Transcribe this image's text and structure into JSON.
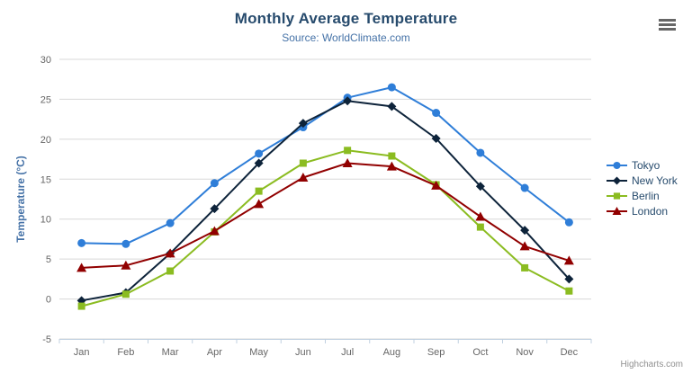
{
  "chart_data": {
    "type": "line",
    "title": "Monthly Average Temperature",
    "subtitle": "Source: WorldClimate.com",
    "xlabel": "",
    "ylabel": "Temperature (°C)",
    "categories": [
      "Jan",
      "Feb",
      "Mar",
      "Apr",
      "May",
      "Jun",
      "Jul",
      "Aug",
      "Sep",
      "Oct",
      "Nov",
      "Dec"
    ],
    "series": [
      {
        "name": "Tokyo",
        "color": "#2f7ed8",
        "marker": "circle",
        "values": [
          7.0,
          6.9,
          9.5,
          14.5,
          18.2,
          21.5,
          25.2,
          26.5,
          23.3,
          18.3,
          13.9,
          9.6
        ]
      },
      {
        "name": "New York",
        "color": "#0d233a",
        "marker": "diamond",
        "values": [
          -0.2,
          0.8,
          5.7,
          11.3,
          17.0,
          22.0,
          24.8,
          24.1,
          20.1,
          14.1,
          8.6,
          2.5
        ]
      },
      {
        "name": "Berlin",
        "color": "#8bbc21",
        "marker": "square",
        "values": [
          -0.9,
          0.6,
          3.5,
          8.4,
          13.5,
          17.0,
          18.6,
          17.9,
          14.3,
          9.0,
          3.9,
          1.0
        ]
      },
      {
        "name": "London",
        "color": "#910000",
        "marker": "triangle",
        "values": [
          3.9,
          4.2,
          5.7,
          8.5,
          11.9,
          15.2,
          17.0,
          16.6,
          14.2,
          10.3,
          6.6,
          4.8
        ]
      }
    ],
    "ylim": [
      -5,
      30
    ],
    "ytick_step": 5,
    "grid": true,
    "legend_position": "right"
  },
  "credits": {
    "text": "Highcharts.com"
  },
  "colors": {
    "title": "#274b6d",
    "subtitle": "#4572a7",
    "axis_label": "#666666",
    "axis_title": "#4572a7",
    "grid": "#d8d8d8",
    "axis_line": "#c0d0e0",
    "legend_text": "#274b6d",
    "credit": "#909090",
    "export_icon": "#666666"
  }
}
